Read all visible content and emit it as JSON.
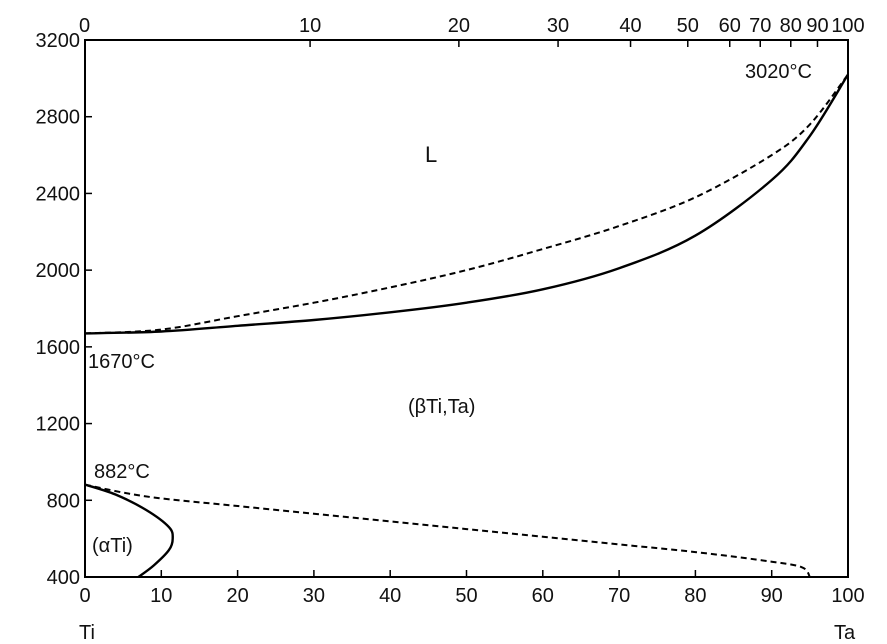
{
  "chart_data": {
    "type": "line",
    "title": "",
    "xlabel": "",
    "ylabel": "",
    "xlim": [
      0,
      100
    ],
    "ylim": [
      400,
      3200
    ],
    "bottom_ticks": [
      "0",
      "10",
      "20",
      "30",
      "40",
      "50",
      "60",
      "70",
      "80",
      "90",
      "100"
    ],
    "left_ticks": [
      "400",
      "800",
      "1200",
      "1600",
      "2000",
      "2400",
      "2800",
      "3200"
    ],
    "top_ticks": [
      {
        "label": "0",
        "at": 0
      },
      {
        "label": "10",
        "at": 29.5
      },
      {
        "label": "20",
        "at": 49
      },
      {
        "label": "30",
        "at": 62
      },
      {
        "label": "40",
        "at": 71.5
      },
      {
        "label": "50",
        "at": 79
      },
      {
        "label": "60",
        "at": 84.5
      },
      {
        "label": "70",
        "at": 88.5
      },
      {
        "label": "80",
        "at": 92.5
      },
      {
        "label": "90",
        "at": 96
      },
      {
        "label": "100",
        "at": 100
      }
    ],
    "endpoint_left": "Ti",
    "endpoint_right": "Ta",
    "region_labels": {
      "liquid": "L",
      "beta": "(βTi,Ta)",
      "alpha": "(αTi)"
    },
    "annotations": {
      "ta_melting": "3020°C",
      "ti_melting": "1670°C",
      "ti_transition": "882°C"
    },
    "series": [
      {
        "style": "dashed",
        "points": [
          [
            0,
            1670
          ],
          [
            10,
            1690
          ],
          [
            20,
            1760
          ],
          [
            30,
            1830
          ],
          [
            40,
            1910
          ],
          [
            50,
            2000
          ],
          [
            60,
            2110
          ],
          [
            70,
            2230
          ],
          [
            80,
            2380
          ],
          [
            90,
            2600
          ],
          [
            95,
            2760
          ],
          [
            100,
            3020
          ]
        ]
      },
      {
        "style": "solid",
        "points": [
          [
            0,
            1670
          ],
          [
            10,
            1680
          ],
          [
            20,
            1710
          ],
          [
            30,
            1740
          ],
          [
            40,
            1780
          ],
          [
            50,
            1830
          ],
          [
            60,
            1900
          ],
          [
            70,
            2010
          ],
          [
            80,
            2180
          ],
          [
            90,
            2470
          ],
          [
            95,
            2700
          ],
          [
            100,
            3020
          ]
        ]
      },
      {
        "style": "dashed",
        "points": [
          [
            0,
            882
          ],
          [
            5,
            840
          ],
          [
            10,
            810
          ],
          [
            20,
            770
          ],
          [
            30,
            730
          ],
          [
            40,
            690
          ],
          [
            50,
            650
          ],
          [
            60,
            610
          ],
          [
            70,
            570
          ],
          [
            80,
            530
          ],
          [
            90,
            480
          ],
          [
            94,
            450
          ],
          [
            95,
            400
          ]
        ]
      },
      {
        "style": "solid",
        "points": [
          [
            0,
            882
          ],
          [
            4,
            830
          ],
          [
            8,
            750
          ],
          [
            11,
            660
          ],
          [
            11.5,
            600
          ],
          [
            11,
            540
          ],
          [
            9,
            460
          ],
          [
            7,
            400
          ]
        ]
      }
    ]
  }
}
